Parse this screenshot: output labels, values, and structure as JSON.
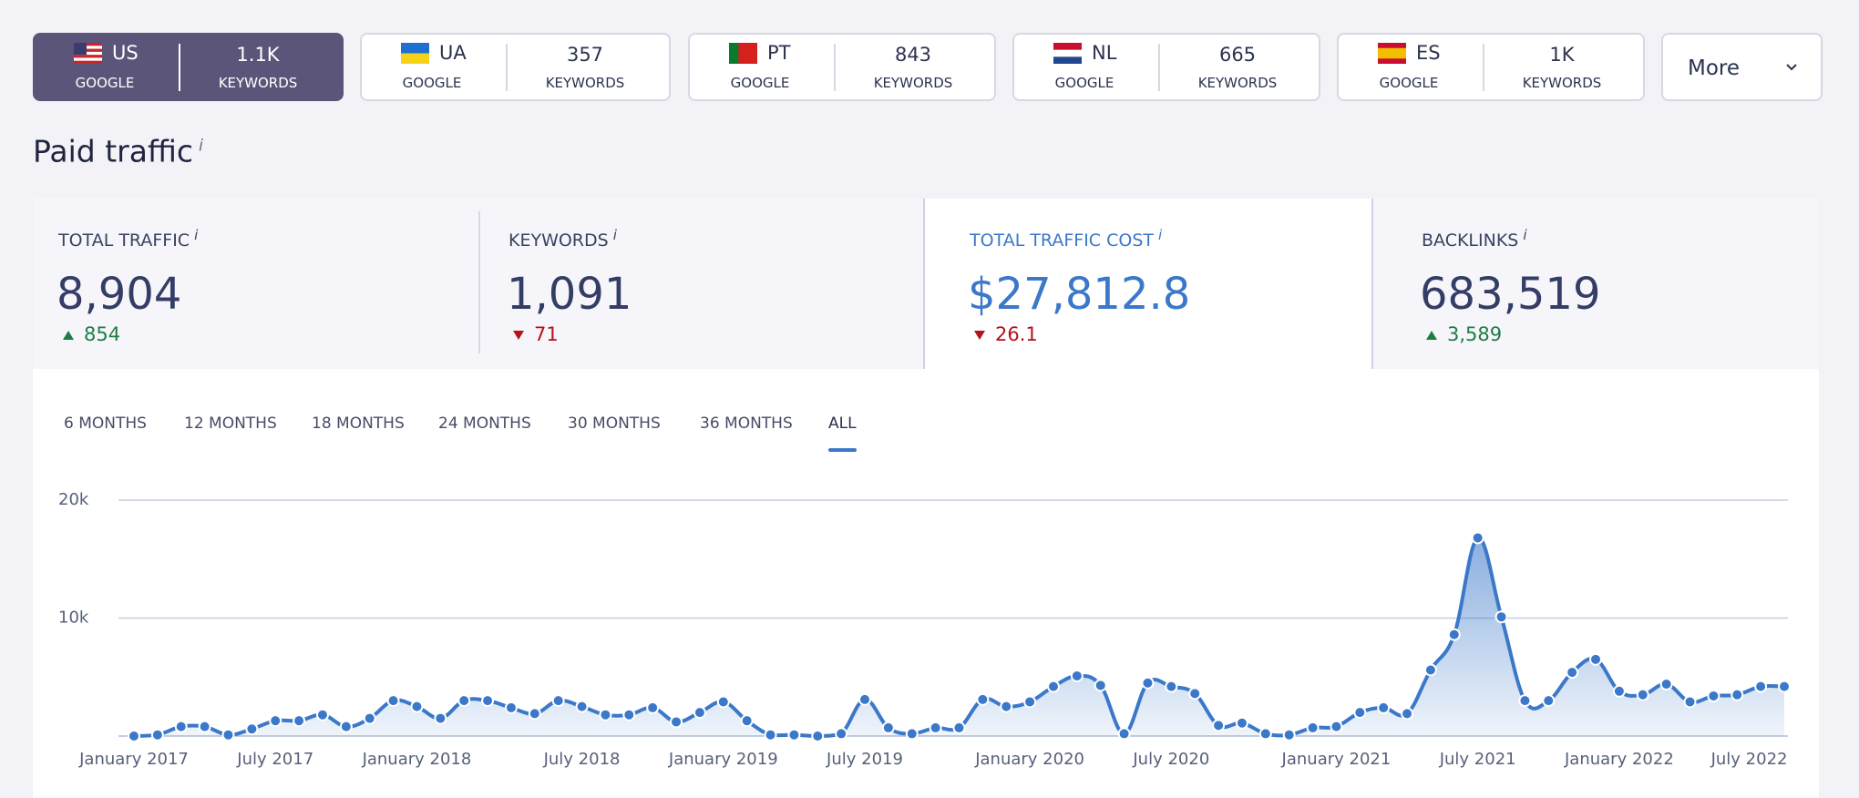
{
  "tabs": [
    {
      "code": "US",
      "engine": "GOOGLE",
      "count": "1.1K",
      "count_label": "KEYWORDS",
      "active": true,
      "flag": {
        "stripes": [
          "#c9252c",
          "#ffffff",
          "#c9252c",
          "#ffffff",
          "#c9252c",
          "#ffffff",
          "#c9252c"
        ],
        "canton": "#3c3b6e",
        "direction": "horizontal"
      }
    },
    {
      "code": "UA",
      "engine": "GOOGLE",
      "count": "357",
      "count_label": "KEYWORDS",
      "active": false,
      "flag": {
        "stripes": [
          "#1f6fd1",
          "#f7d117"
        ],
        "direction": "horizontal"
      }
    },
    {
      "code": "PT",
      "engine": "GOOGLE",
      "count": "843",
      "count_label": "KEYWORDS",
      "active": false,
      "flag": {
        "stripes": [
          "#0a7a2f",
          "#d5211d",
          "#d5211d"
        ],
        "direction": "vertical"
      }
    },
    {
      "code": "NL",
      "engine": "GOOGLE",
      "count": "665",
      "count_label": "KEYWORDS",
      "active": false,
      "flag": {
        "stripes": [
          "#c8102e",
          "#ffffff",
          "#21468b"
        ],
        "direction": "horizontal"
      }
    },
    {
      "code": "ES",
      "engine": "GOOGLE",
      "count": "1K",
      "count_label": "KEYWORDS",
      "active": false,
      "flag": {
        "stripes": [
          "#c8102e",
          "#f1bf00",
          "#f1bf00",
          "#c8102e"
        ],
        "direction": "horizontal"
      }
    }
  ],
  "more": "More",
  "section_title": "Paid traffic",
  "info": "i",
  "metrics": [
    {
      "label": "TOTAL TRAFFIC",
      "value": "8,904",
      "delta": "854",
      "trend": "up",
      "selected": false
    },
    {
      "label": "KEYWORDS",
      "value": "1,091",
      "delta": "71",
      "trend": "down",
      "selected": false
    },
    {
      "label": "TOTAL TRAFFIC COST",
      "value": "$27,812.8",
      "delta": "26.1",
      "trend": "down",
      "selected": true
    },
    {
      "label": "BACKLINKS",
      "value": "683,519",
      "delta": "3,589",
      "trend": "up",
      "selected": false
    }
  ],
  "periods": {
    "options": [
      "6 MONTHS",
      "12 MONTHS",
      "18 MONTHS",
      "24 MONTHS",
      "30 MONTHS",
      "36 MONTHS",
      "ALL"
    ],
    "selected": 6
  },
  "chart_data": {
    "type": "area",
    "color": "#3b78c9",
    "categories": [
      "January 2017",
      null,
      null,
      null,
      null,
      null,
      "July 2017",
      null,
      null,
      null,
      null,
      null,
      "January 2018",
      null,
      null,
      null,
      null,
      null,
      null,
      "July 2018",
      null,
      null,
      null,
      null,
      null,
      "January 2019",
      null,
      null,
      null,
      null,
      null,
      "July 2019",
      null,
      null,
      null,
      null,
      null,
      null,
      "January 2020",
      null,
      null,
      null,
      null,
      null,
      "July 2020",
      null,
      null,
      null,
      null,
      null,
      null,
      "January 2021",
      null,
      null,
      null,
      null,
      null,
      "July 2021",
      null,
      null,
      null,
      null,
      null,
      "January 2022",
      null,
      null,
      null,
      null,
      null,
      "July 2022",
      null
    ],
    "values": [
      0,
      100,
      800,
      800,
      100,
      600,
      1300,
      1300,
      1800,
      800,
      1500,
      3000,
      2500,
      1500,
      3000,
      3000,
      2400,
      1900,
      3000,
      2500,
      1800,
      1800,
      2400,
      1200,
      2000,
      2900,
      1300,
      100,
      100,
      0,
      200,
      3100,
      700,
      200,
      700,
      700,
      3100,
      2500,
      2900,
      4200,
      5100,
      4300,
      200,
      4500,
      4200,
      3600,
      900,
      1100,
      200,
      100,
      700,
      800,
      2000,
      2400,
      1900,
      5600,
      8600,
      16800,
      10100,
      3000,
      3000,
      5400,
      6500,
      3800,
      3500,
      4400,
      2900,
      3400,
      3500,
      4200,
      4200
    ],
    "ylim": [
      0,
      20000
    ],
    "yticks": [
      {
        "value": 10000,
        "label": "10k"
      },
      {
        "value": 20000,
        "label": "20k"
      }
    ],
    "grid": true
  }
}
